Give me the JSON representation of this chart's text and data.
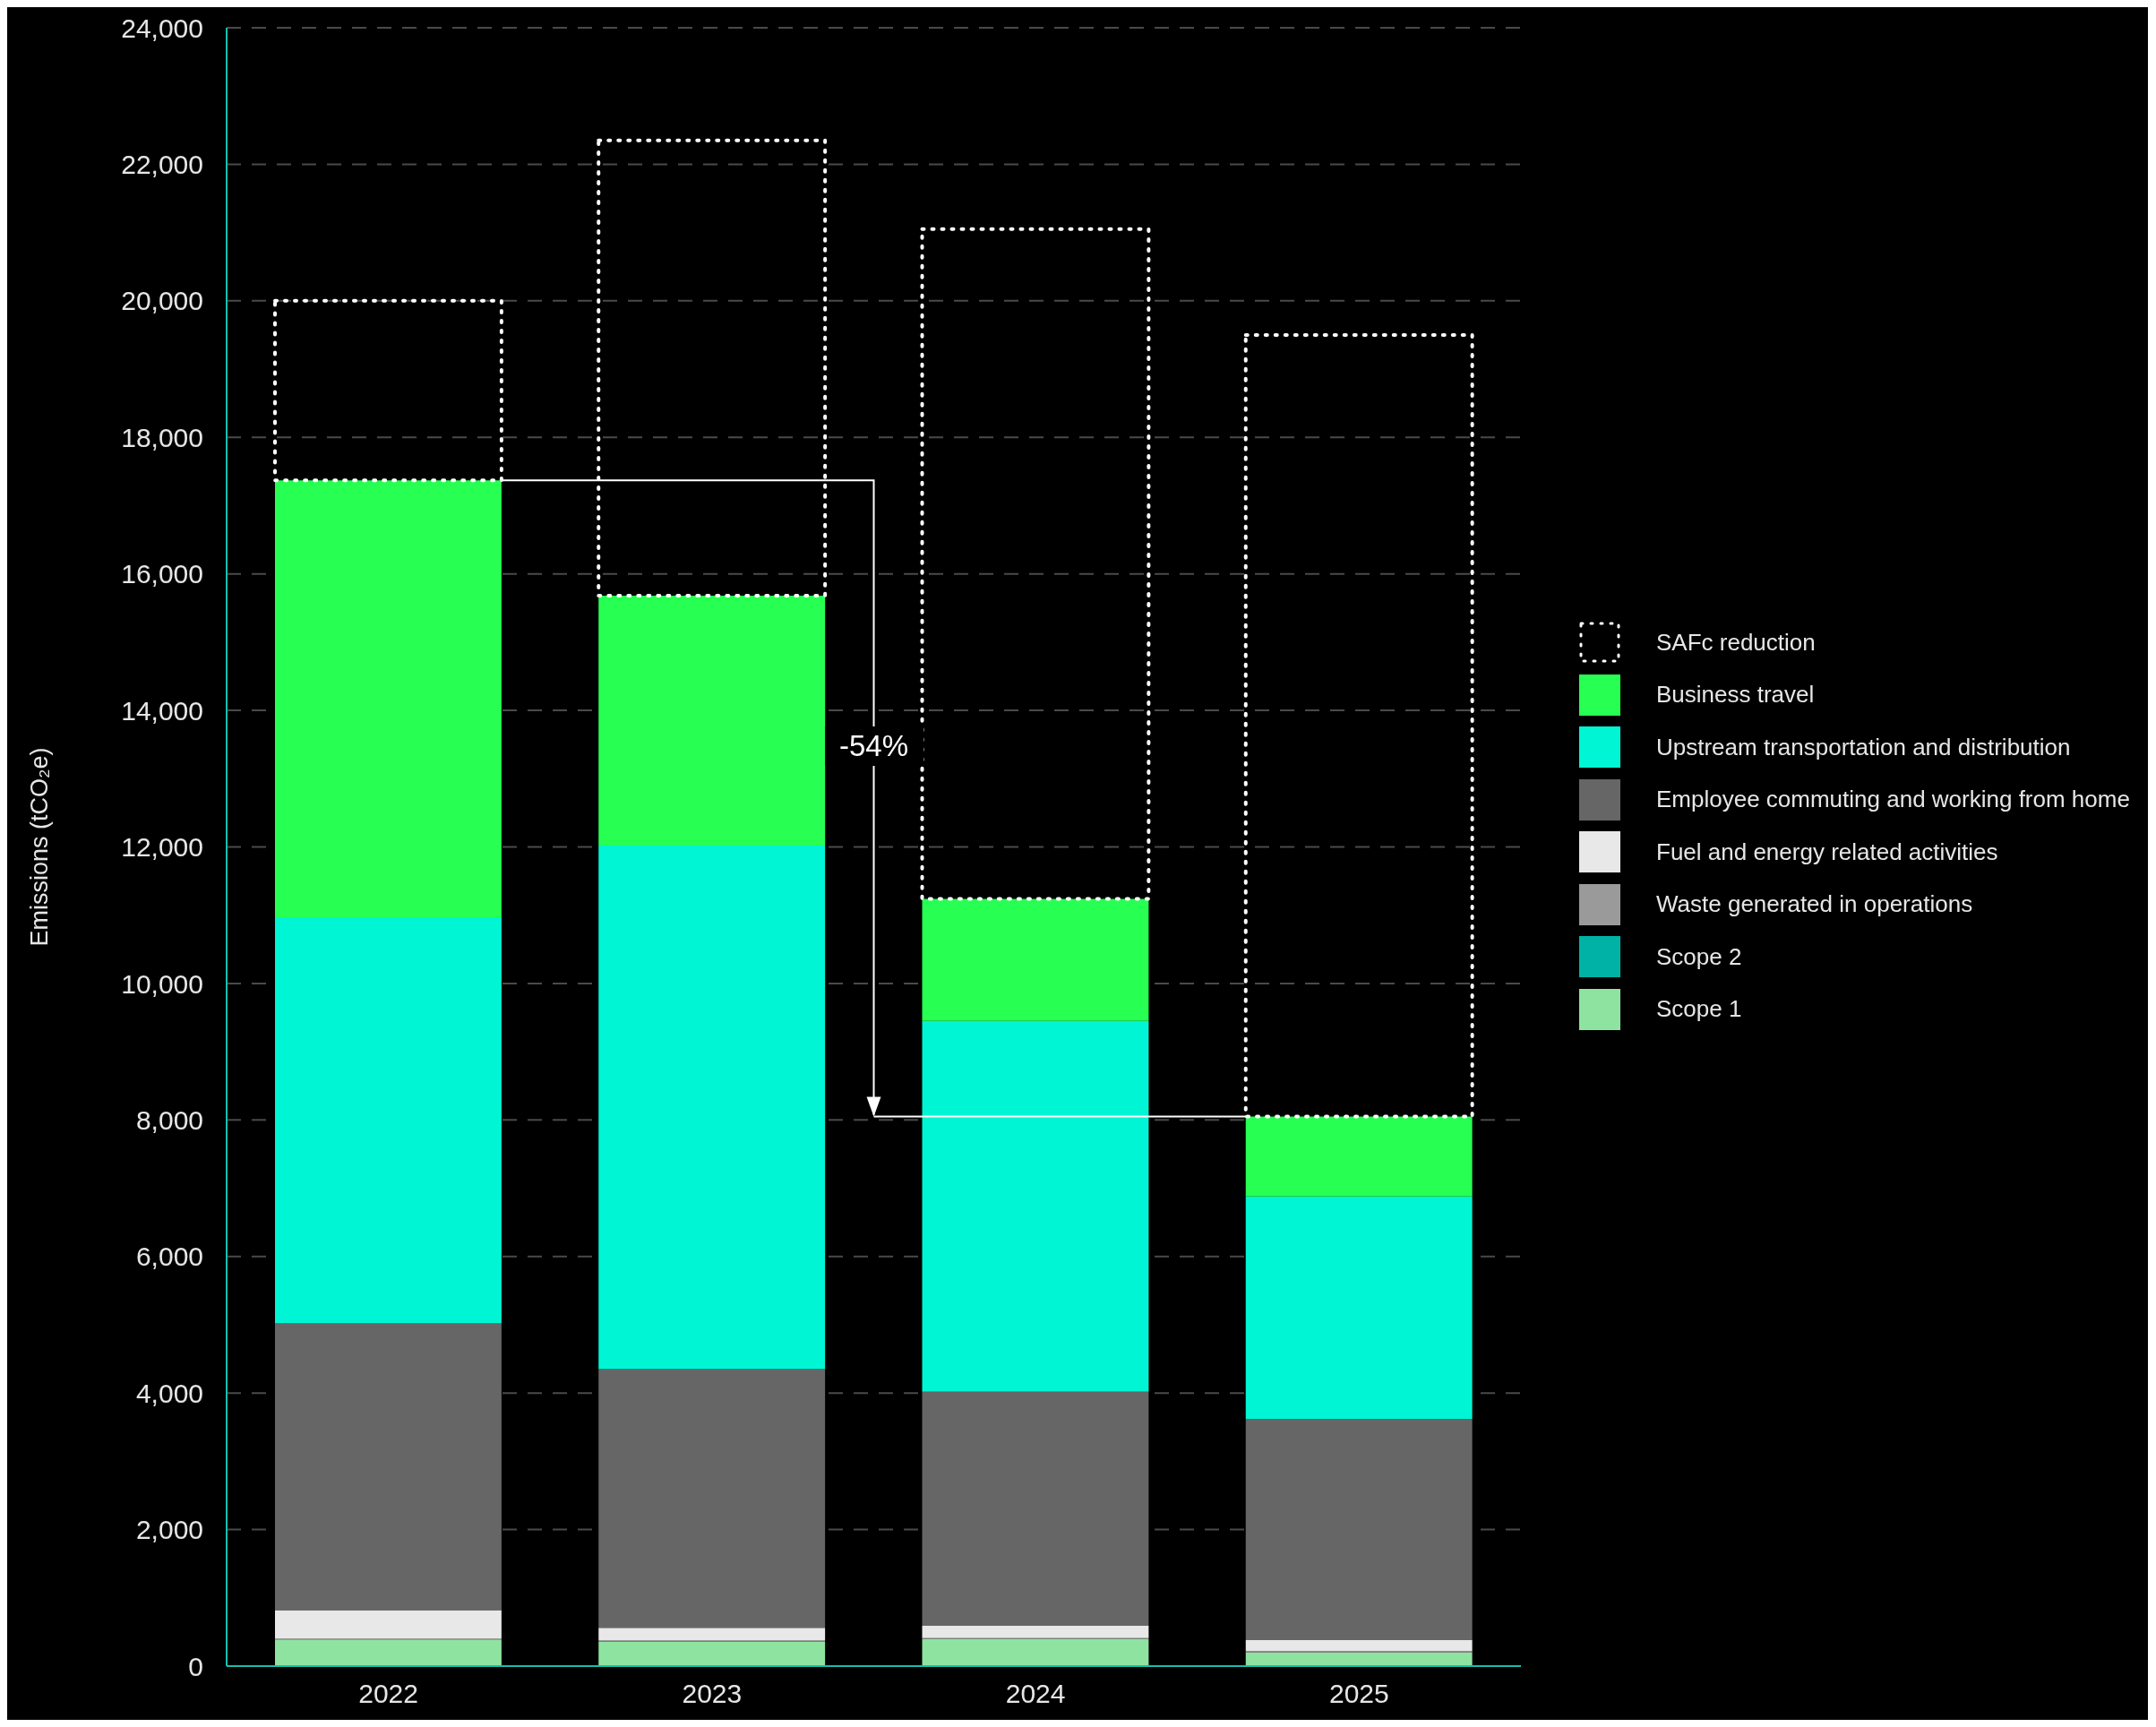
{
  "chart_data": {
    "type": "bar",
    "stacked": true,
    "ylabel": "Emissions (tCO₂e)",
    "categories": [
      "2022",
      "2023",
      "2024",
      "2025"
    ],
    "series": [
      {
        "name": "Scope 1",
        "color": "#8fe3a0",
        "values": [
          380,
          360,
          400,
          200
        ]
      },
      {
        "name": "Scope 2",
        "color": "#00b2a6",
        "values": [
          0,
          0,
          0,
          0
        ]
      },
      {
        "name": "Waste generated in operations",
        "color": "#9a9a9a",
        "values": [
          20,
          20,
          10,
          20
        ]
      },
      {
        "name": "Fuel and energy related activities",
        "color": "#e8e8e8",
        "values": [
          420,
          180,
          180,
          160
        ]
      },
      {
        "name": "Employee commuting and working from home",
        "color": "#666666",
        "values": [
          4200,
          3790,
          3430,
          3240
        ]
      },
      {
        "name": "Upstream transportation and distribution",
        "color": "#00f5d4",
        "values": [
          5950,
          7670,
          5430,
          3260
        ]
      },
      {
        "name": "Business travel",
        "color": "#27ff52",
        "values": [
          6400,
          3660,
          1790,
          1170
        ]
      },
      {
        "name": "SAFc reduction",
        "color": "#ffffff",
        "line_style": "dotted",
        "values": [
          2630,
          6670,
          9810,
          11450
        ]
      }
    ],
    "ylim": [
      0,
      24000
    ],
    "yticks": [
      {
        "value": 0,
        "label": "0"
      },
      {
        "value": 2000,
        "label": "2,000"
      },
      {
        "value": 4000,
        "label": "4,000"
      },
      {
        "value": 6000,
        "label": "6,000"
      },
      {
        "value": 8000,
        "label": "8,000"
      },
      {
        "value": 10000,
        "label": "10,000"
      },
      {
        "value": 12000,
        "label": "12,000"
      },
      {
        "value": 14000,
        "label": "14,000"
      },
      {
        "value": 16000,
        "label": "16,000"
      },
      {
        "value": 18000,
        "label": "18,000"
      },
      {
        "value": 20000,
        "label": "20,000"
      },
      {
        "value": 22000,
        "label": "22,000"
      },
      {
        "value": 24000,
        "label": "24,000"
      }
    ],
    "grid": "y",
    "legend": "right",
    "annotations": [
      "-54%"
    ]
  }
}
